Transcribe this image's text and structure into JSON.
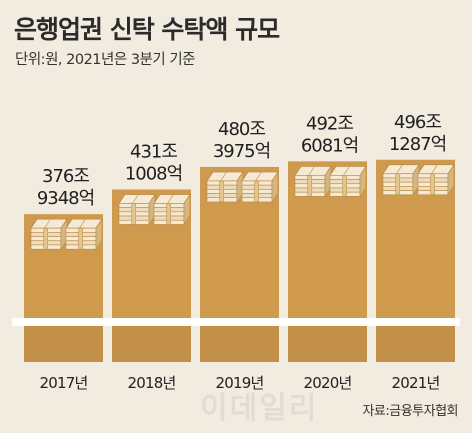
{
  "title": "은행업권 신탁 수탁액 규모",
  "subtitle": "단위:원, 2021년은 3분기 기준",
  "source": "자료:금융투자협회",
  "watermark": "이데일리",
  "colors": {
    "background": "#f1ebe0",
    "bar_top": "#cf9a4e",
    "bar_bottom": "#c29048",
    "band": "#ffffff",
    "stack_light": "#f6ead4",
    "stack_dark": "#d6b680"
  },
  "chart_data": {
    "type": "bar",
    "categories": [
      "2017년",
      "2018년",
      "2019년",
      "2020년",
      "2021년"
    ],
    "values": [
      376.9348,
      431.1008,
      480.3975,
      492.6081,
      496.1287
    ],
    "value_labels": [
      [
        "376조",
        "9348억"
      ],
      [
        "431조",
        "1008억"
      ],
      [
        "480조",
        "3975억"
      ],
      [
        "492조",
        "6081억"
      ],
      [
        "496조",
        "1287억"
      ]
    ],
    "title": "은행업권 신탁 수탁액 규모",
    "xlabel": "",
    "ylabel": "",
    "unit": "원",
    "ylim": [
      0,
      500
    ],
    "grid": false,
    "legend": false
  }
}
